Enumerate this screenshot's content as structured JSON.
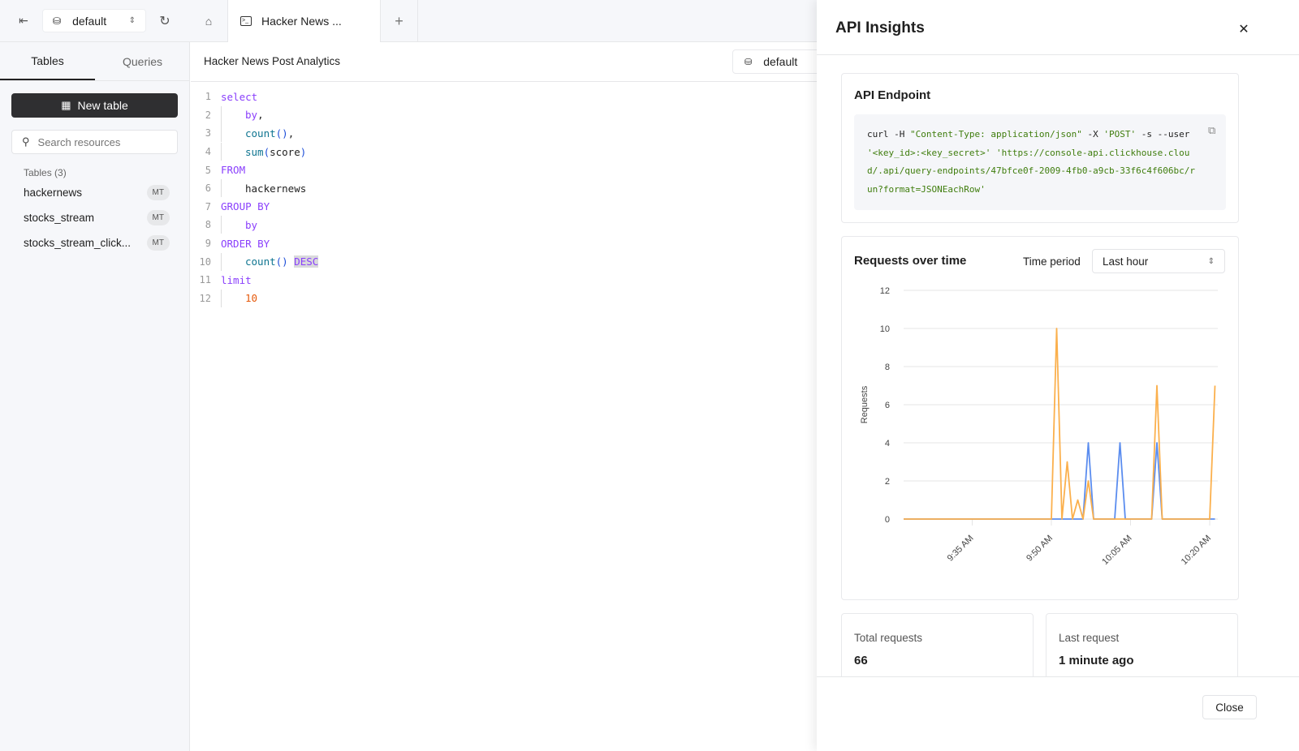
{
  "topbar": {
    "database": "default",
    "query_tab": "Hacker News ...",
    "icons": [
      "collapse-sidebar-icon",
      "database-icon",
      "chevron-updown-icon",
      "refresh-icon",
      "home-icon",
      "terminal-icon",
      "plus-icon"
    ]
  },
  "sidebar": {
    "tabs": [
      "Tables",
      "Queries"
    ],
    "new_table": "New table",
    "search_placeholder": "Search resources",
    "tables_heading": "Tables (3)",
    "tables": [
      {
        "name": "hackernews",
        "badge": "MT"
      },
      {
        "name": "stocks_stream",
        "badge": "MT"
      },
      {
        "name": "stocks_stream_click...",
        "badge": "MT"
      }
    ]
  },
  "editor": {
    "title": "Hacker News Post Analytics",
    "database": "default",
    "lines": [
      {
        "n": "1",
        "indent": false,
        "tokens": [
          [
            "select",
            "kw"
          ]
        ]
      },
      {
        "n": "2",
        "indent": true,
        "tokens": [
          [
            "by",
            "kw"
          ],
          [
            ",",
            "tx"
          ]
        ]
      },
      {
        "n": "3",
        "indent": true,
        "tokens": [
          [
            "count",
            "fn"
          ],
          [
            "()",
            "pn"
          ],
          [
            ",",
            "tx"
          ]
        ]
      },
      {
        "n": "4",
        "indent": true,
        "tokens": [
          [
            "sum",
            "fn"
          ],
          [
            "(",
            "pn"
          ],
          [
            "score",
            "tx"
          ],
          [
            ")",
            "pn"
          ]
        ]
      },
      {
        "n": "5",
        "indent": false,
        "tokens": [
          [
            "FROM",
            "kw"
          ]
        ]
      },
      {
        "n": "6",
        "indent": true,
        "tokens": [
          [
            "hackernews",
            "tx"
          ]
        ]
      },
      {
        "n": "7",
        "indent": false,
        "tokens": [
          [
            "GROUP BY",
            "kw"
          ]
        ]
      },
      {
        "n": "8",
        "indent": true,
        "tokens": [
          [
            "by",
            "kw"
          ]
        ]
      },
      {
        "n": "9",
        "indent": false,
        "tokens": [
          [
            "ORDER BY",
            "kw"
          ]
        ]
      },
      {
        "n": "10",
        "indent": true,
        "tokens": [
          [
            "count",
            "fn"
          ],
          [
            "()",
            "pn"
          ],
          [
            " ",
            "tx"
          ],
          [
            "DESC",
            "kw sel"
          ]
        ]
      },
      {
        "n": "11",
        "indent": false,
        "tokens": [
          [
            "limit",
            "kw"
          ]
        ]
      },
      {
        "n": "12",
        "indent": true,
        "tokens": [
          [
            "10",
            "num"
          ]
        ]
      }
    ]
  },
  "panel": {
    "title": "API Insights",
    "endpoint_heading": "API Endpoint",
    "curl": [
      [
        "curl -H ",
        ""
      ],
      [
        "\"Content-Type: application/json\"",
        "str"
      ],
      [
        " -X ",
        ""
      ],
      [
        "'POST'",
        "str"
      ],
      [
        " -s --user ",
        ""
      ],
      [
        "'<key_id>:<key_secret>'",
        "str"
      ],
      [
        " ",
        ""
      ],
      [
        "'https://console-api.clickhouse.cloud/.api/query-endpoints/47bfce0f-2009-4fb0-a9cb-33f6c4f606bc/run?format=JSONEachRow'",
        "str"
      ]
    ],
    "chart_heading": "Requests over time",
    "time_period_label": "Time period",
    "time_period": "Last hour",
    "total_label": "Total requests",
    "total_value": "66",
    "last_label": "Last request",
    "last_value": "1 minute ago",
    "close": "Close"
  },
  "chart_data": {
    "type": "line",
    "ylabel": "Requests",
    "ylim": [
      0,
      12
    ],
    "yticks": [
      0,
      2,
      4,
      6,
      8,
      10,
      12
    ],
    "grid": true,
    "xticks": [
      "9:35 AM",
      "9:50 AM",
      "10:05 AM",
      "10:20 AM"
    ],
    "x": [
      "9:22",
      "9:23",
      "9:24",
      "9:25",
      "9:26",
      "9:27",
      "9:28",
      "9:29",
      "9:30",
      "9:31",
      "9:32",
      "9:33",
      "9:34",
      "9:35",
      "9:36",
      "9:37",
      "9:38",
      "9:39",
      "9:40",
      "9:41",
      "9:42",
      "9:43",
      "9:44",
      "9:45",
      "9:46",
      "9:47",
      "9:48",
      "9:49",
      "9:50",
      "9:51",
      "9:52",
      "9:53",
      "9:54",
      "9:55",
      "9:56",
      "9:57",
      "9:58",
      "9:59",
      "10:00",
      "10:01",
      "10:02",
      "10:03",
      "10:04",
      "10:05",
      "10:06",
      "10:07",
      "10:08",
      "10:09",
      "10:10",
      "10:11",
      "10:12",
      "10:13",
      "10:14",
      "10:15",
      "10:16",
      "10:17",
      "10:18",
      "10:19",
      "10:20",
      "10:21"
    ],
    "series": [
      {
        "color": "#5b8def",
        "values": [
          0,
          0,
          0,
          0,
          0,
          0,
          0,
          0,
          0,
          0,
          0,
          0,
          0,
          0,
          0,
          0,
          0,
          0,
          0,
          0,
          0,
          0,
          0,
          0,
          0,
          0,
          0,
          0,
          0,
          0,
          0,
          0,
          0,
          0,
          0,
          4,
          0,
          0,
          0,
          0,
          0,
          4,
          0,
          0,
          0,
          0,
          0,
          0,
          4,
          0,
          0,
          0,
          0,
          0,
          0,
          0,
          0,
          0,
          0,
          0
        ]
      },
      {
        "color": "#fbb04d",
        "values": [
          0,
          0,
          0,
          0,
          0,
          0,
          0,
          0,
          0,
          0,
          0,
          0,
          0,
          0,
          0,
          0,
          0,
          0,
          0,
          0,
          0,
          0,
          0,
          0,
          0,
          0,
          0,
          0,
          0,
          10,
          0,
          3,
          0,
          1,
          0,
          2,
          0,
          0,
          0,
          0,
          0,
          0,
          0,
          0,
          0,
          0,
          0,
          0,
          7,
          0,
          0,
          0,
          0,
          0,
          0,
          0,
          0,
          0,
          0,
          7
        ]
      }
    ]
  }
}
